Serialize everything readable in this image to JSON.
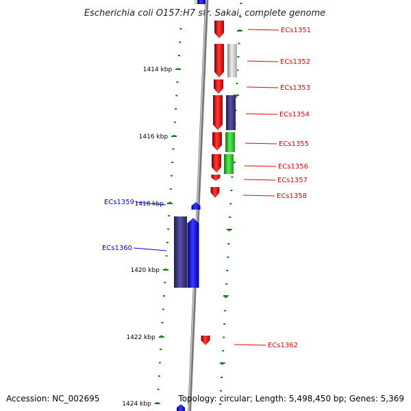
{
  "title": "Escherichia coli O157:H7 str. Sakai, complete genome",
  "footer": {
    "accession": "Accession: NC_002695",
    "summary": "Topology: circular; Length: 5,498,450 bp; Genes: 5,369"
  },
  "colors": {
    "red": "#e00000",
    "blue": "#0000ee",
    "navy": "#3a327c",
    "green": "#22cc22",
    "gray": "#bbbbbb",
    "tick": "#1a7a1a",
    "backbone": "#888888"
  },
  "ruler": [
    {
      "label": "1414 kbp"
    },
    {
      "label": "1416 kbp"
    },
    {
      "label": "1418 kbp"
    },
    {
      "label": "1420 kbp"
    },
    {
      "label": "1422 kbp"
    },
    {
      "label": "1424 kbp"
    }
  ],
  "genes": [
    {
      "label": "ECs1351",
      "color": "red"
    },
    {
      "label": "ECs1352",
      "color": "red"
    },
    {
      "label": "ECs1353",
      "color": "red"
    },
    {
      "label": "ECs1354",
      "color": "red"
    },
    {
      "label": "ECs1355",
      "color": "red"
    },
    {
      "label": "ECs1356",
      "color": "red"
    },
    {
      "label": "ECs1357",
      "color": "red"
    },
    {
      "label": "ECs1358",
      "color": "red"
    },
    {
      "label": "ECs1359",
      "color": "blue"
    },
    {
      "label": "ECs1360",
      "color": "blue"
    },
    {
      "label": "ECs1362",
      "color": "red"
    }
  ]
}
